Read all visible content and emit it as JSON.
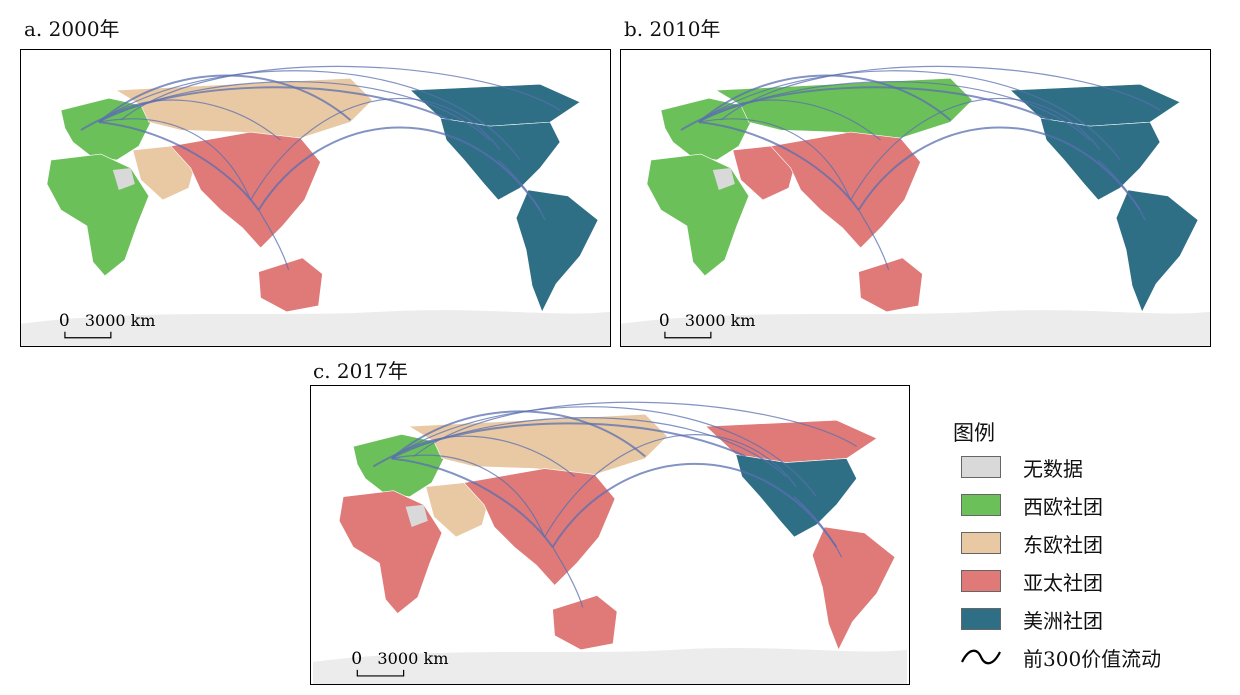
{
  "panels": [
    {
      "id": "a",
      "title": "a. 2000年"
    },
    {
      "id": "b",
      "title": "b. 2010年"
    },
    {
      "id": "c",
      "title": "c. 2017年"
    }
  ],
  "scalebar": {
    "zero": "0",
    "label": "3000 km"
  },
  "legend": {
    "title": "图例",
    "items": [
      {
        "label": "无数据",
        "color": "#d9d9d9"
      },
      {
        "label": "西欧社团",
        "color": "#6cc05a"
      },
      {
        "label": "东欧社团",
        "color": "#e9c9a3"
      },
      {
        "label": "亚太社团",
        "color": "#e07a78"
      },
      {
        "label": "美洲社团",
        "color": "#2f6f86"
      }
    ],
    "flow_label": "前300价值流动"
  },
  "colors": {
    "flow": "#5a6fb0",
    "ocean": "#ffffff",
    "antarctica": "#ececec"
  },
  "maps": {
    "a": {
      "europe_w": "green",
      "russia": "east",
      "asia": "apac",
      "oceania": "apac",
      "africa": "green",
      "n_america": "americas",
      "s_america": "americas",
      "canada": "americas",
      "middle_east": "east"
    },
    "b": {
      "europe_w": "green",
      "russia": "green",
      "asia": "apac",
      "oceania": "apac",
      "africa": "green",
      "n_america": "americas",
      "s_america": "americas",
      "canada": "americas",
      "middle_east": "apac"
    },
    "c": {
      "europe_w": "green",
      "russia": "east",
      "asia": "apac",
      "oceania": "apac",
      "africa": "apac",
      "n_america": "americas",
      "s_america": "apac",
      "canada": "apac",
      "middle_east": "east"
    }
  }
}
